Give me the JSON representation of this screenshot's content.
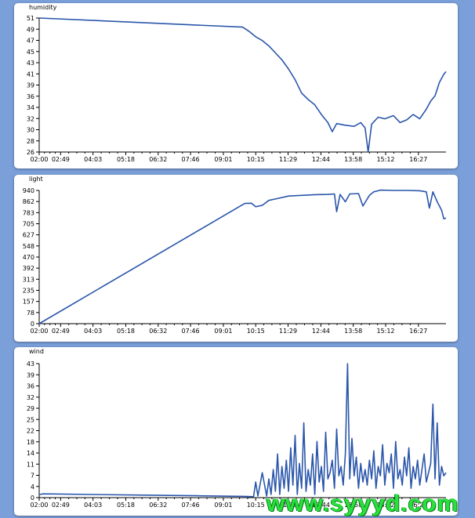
{
  "chart_data": [
    {
      "id": "humidity",
      "type": "line",
      "title": "humidity",
      "x_ticks": [
        "02:00",
        "02:49",
        "04:03",
        "05:18",
        "06:32",
        "07:46",
        "09:01",
        "10:15",
        "11:29",
        "12:44",
        "13:58",
        "15:12",
        "16:27"
      ],
      "y_ticks": [
        "26",
        "28",
        "30",
        "32",
        "34",
        "36",
        "39",
        "41",
        "43",
        "45",
        "47",
        "49",
        "51"
      ],
      "ylim": [
        26,
        51
      ],
      "xlim": [
        "02:00",
        "17:30"
      ],
      "series": [
        {
          "color": "#2a56ab",
          "points": [
            [
              "02:00",
              51
            ],
            [
              "09:45",
              49.3
            ],
            [
              "10:00",
              48.5
            ],
            [
              "10:15",
              47.5
            ],
            [
              "10:30",
              46.8
            ],
            [
              "10:45",
              45.8
            ],
            [
              "11:00",
              44.5
            ],
            [
              "11:15",
              43.2
            ],
            [
              "11:30",
              41.5
            ],
            [
              "11:45",
              39.5
            ],
            [
              "12:00",
              37
            ],
            [
              "12:15",
              35.8
            ],
            [
              "12:30",
              34.8
            ],
            [
              "12:45",
              33
            ],
            [
              "13:00",
              31.5
            ],
            [
              "13:10",
              29.8
            ],
            [
              "13:20",
              31.3
            ],
            [
              "13:40",
              31
            ],
            [
              "14:00",
              30.8
            ],
            [
              "14:15",
              31.5
            ],
            [
              "14:25",
              30.5
            ],
            [
              "14:32",
              26
            ],
            [
              "14:40",
              31.2
            ],
            [
              "14:55",
              32.5
            ],
            [
              "15:10",
              32.2
            ],
            [
              "15:30",
              32.8
            ],
            [
              "15:45",
              31.5
            ],
            [
              "16:00",
              32
            ],
            [
              "16:15",
              33
            ],
            [
              "16:30",
              32.2
            ],
            [
              "16:45",
              34
            ],
            [
              "16:55",
              35.5
            ],
            [
              "17:05",
              36.5
            ],
            [
              "17:15",
              39
            ],
            [
              "17:25",
              40.5
            ],
            [
              "17:30",
              41
            ]
          ]
        }
      ]
    },
    {
      "id": "light",
      "type": "line",
      "title": "light",
      "x_ticks": [
        "02:00",
        "02:49",
        "04:03",
        "05:18",
        "06:32",
        "07:46",
        "09:01",
        "10:15",
        "11:29",
        "12:44",
        "13:58",
        "15:12",
        "16:27"
      ],
      "y_ticks": [
        "0",
        "78",
        "157",
        "235",
        "313",
        "392",
        "470",
        "548",
        "627",
        "705",
        "783",
        "862",
        "940"
      ],
      "ylim": [
        0,
        940
      ],
      "xlim": [
        "02:00",
        "17:30"
      ],
      "series": [
        {
          "color": "#2a56ab",
          "points": [
            [
              "02:00",
              0
            ],
            [
              "09:50",
              848
            ],
            [
              "10:05",
              850
            ],
            [
              "10:15",
              825
            ],
            [
              "10:30",
              835
            ],
            [
              "10:45",
              870
            ],
            [
              "11:00",
              880
            ],
            [
              "11:30",
              900
            ],
            [
              "12:00",
              905
            ],
            [
              "12:30",
              910
            ],
            [
              "13:00",
              912
            ],
            [
              "13:15",
              915
            ],
            [
              "13:20",
              790
            ],
            [
              "13:28",
              912
            ],
            [
              "13:40",
              860
            ],
            [
              "13:50",
              915
            ],
            [
              "14:10",
              918
            ],
            [
              "14:20",
              830
            ],
            [
              "14:35",
              905
            ],
            [
              "14:45",
              930
            ],
            [
              "15:00",
              942
            ],
            [
              "15:30",
              940
            ],
            [
              "16:00",
              940
            ],
            [
              "16:30",
              938
            ],
            [
              "16:45",
              930
            ],
            [
              "16:52",
              815
            ],
            [
              "17:00",
              930
            ],
            [
              "17:10",
              860
            ],
            [
              "17:20",
              800
            ],
            [
              "17:25",
              740
            ],
            [
              "17:30",
              745
            ]
          ]
        }
      ]
    },
    {
      "id": "wind",
      "type": "line",
      "title": "wind",
      "x_ticks": [
        "02:00",
        "02:49",
        "04:03",
        "05:18",
        "06:32",
        "07:46",
        "09:01",
        "10:15",
        "11:29",
        "12:44",
        "13:58",
        "15:12",
        "16:27"
      ],
      "y_ticks": [
        "0",
        "4",
        "7",
        "11",
        "14",
        "18",
        "22",
        "25",
        "29",
        "32",
        "36",
        "39",
        "43"
      ],
      "ylim": [
        0,
        43
      ],
      "xlim": [
        "02:00",
        "17:30"
      ],
      "series": [
        {
          "color": "#2a56ab",
          "points": [
            [
              "02:00",
              1
            ],
            [
              "02:10",
              1.2
            ],
            [
              "04:00",
              1
            ],
            [
              "06:00",
              0.8
            ],
            [
              "08:00",
              0.6
            ],
            [
              "09:50",
              0.4
            ],
            [
              "10:10",
              0.3
            ],
            [
              "10:15",
              5
            ],
            [
              "10:20",
              0.5
            ],
            [
              "10:30",
              8
            ],
            [
              "10:40",
              0.5
            ],
            [
              "10:45",
              6
            ],
            [
              "10:50",
              1
            ],
            [
              "10:55",
              9
            ],
            [
              "11:00",
              2
            ],
            [
              "11:05",
              14
            ],
            [
              "11:10",
              1
            ],
            [
              "11:15",
              10
            ],
            [
              "11:20",
              3
            ],
            [
              "11:25",
              12
            ],
            [
              "11:30",
              2
            ],
            [
              "11:35",
              16
            ],
            [
              "11:40",
              4
            ],
            [
              "11:45",
              20
            ],
            [
              "11:50",
              1
            ],
            [
              "11:55",
              11
            ],
            [
              "12:00",
              3
            ],
            [
              "12:05",
              24
            ],
            [
              "12:10",
              2
            ],
            [
              "12:15",
              9
            ],
            [
              "12:20",
              4
            ],
            [
              "12:25",
              14
            ],
            [
              "12:30",
              1
            ],
            [
              "12:35",
              18
            ],
            [
              "12:40",
              5
            ],
            [
              "12:45",
              10
            ],
            [
              "12:50",
              2
            ],
            [
              "12:55",
              21
            ],
            [
              "13:00",
              6
            ],
            [
              "13:05",
              8
            ],
            [
              "13:10",
              12
            ],
            [
              "13:15",
              3
            ],
            [
              "13:20",
              22
            ],
            [
              "13:25",
              7
            ],
            [
              "13:30",
              10
            ],
            [
              "13:35",
              4
            ],
            [
              "13:40",
              14
            ],
            [
              "13:45",
              43
            ],
            [
              "13:50",
              6
            ],
            [
              "13:55",
              19
            ],
            [
              "14:00",
              7
            ],
            [
              "14:05",
              13
            ],
            [
              "14:10",
              3
            ],
            [
              "14:15",
              11
            ],
            [
              "14:20",
              5
            ],
            [
              "14:25",
              9
            ],
            [
              "14:30",
              4
            ],
            [
              "14:35",
              12
            ],
            [
              "14:40",
              6
            ],
            [
              "14:45",
              15
            ],
            [
              "14:50",
              3
            ],
            [
              "14:55",
              10
            ],
            [
              "15:00",
              7
            ],
            [
              "15:05",
              17
            ],
            [
              "15:10",
              4
            ],
            [
              "15:15",
              11
            ],
            [
              "15:20",
              8
            ],
            [
              "15:25",
              14
            ],
            [
              "15:30",
              3
            ],
            [
              "15:35",
              18
            ],
            [
              "15:40",
              6
            ],
            [
              "15:45",
              9
            ],
            [
              "15:50",
              4
            ],
            [
              "15:55",
              13
            ],
            [
              "16:00",
              7
            ],
            [
              "16:05",
              16
            ],
            [
              "16:10",
              3
            ],
            [
              "16:15",
              10
            ],
            [
              "16:20",
              6
            ],
            [
              "16:25",
              12
            ],
            [
              "16:30",
              4
            ],
            [
              "16:35",
              9
            ],
            [
              "16:40",
              14
            ],
            [
              "16:45",
              5
            ],
            [
              "16:50",
              8
            ],
            [
              "16:55",
              11
            ],
            [
              "17:00",
              30
            ],
            [
              "17:05",
              6
            ],
            [
              "17:10",
              24
            ],
            [
              "17:15",
              4
            ],
            [
              "17:20",
              10
            ],
            [
              "17:25",
              7
            ],
            [
              "17:30",
              8
            ]
          ]
        }
      ]
    }
  ],
  "watermark": "www.syyyd.com"
}
